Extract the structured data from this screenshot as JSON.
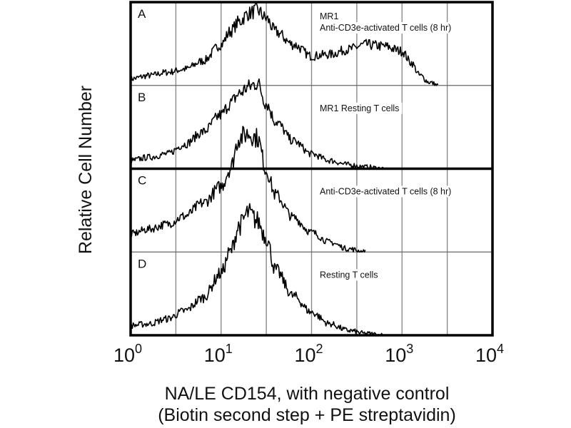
{
  "chart_data": {
    "type": "line",
    "subtype": "stacked-offset flow cytometry histograms",
    "title": "",
    "xlabel_lines": [
      "NA/LE CD154, with negative control",
      "(Biotin second step + PE streptavidin)"
    ],
    "ylabel": "Relative Cell Number",
    "xscale": "log",
    "xlim": [
      1,
      10000
    ],
    "x_ticks": [
      {
        "base": "10",
        "exp": "0"
      },
      {
        "base": "10",
        "exp": "1"
      },
      {
        "base": "10",
        "exp": "2"
      },
      {
        "base": "10",
        "exp": "3"
      },
      {
        "base": "10",
        "exp": "4"
      }
    ],
    "grid": {
      "vertical_every_log10": 0.5,
      "on": true
    },
    "ylim_per_panel": [
      0,
      1
    ],
    "panels": [
      {
        "letter": "A",
        "annotation": [
          "MR1",
          "Anti-CD3e-activated T cells (8 hr)"
        ],
        "log10_x": [
          0.0,
          0.2,
          0.4,
          0.6,
          0.8,
          1.0,
          1.1,
          1.2,
          1.3,
          1.4,
          1.5,
          1.6,
          1.8,
          2.0,
          2.2,
          2.4,
          2.6,
          2.8,
          3.0,
          3.1,
          3.2,
          3.3,
          3.4
        ],
        "height": [
          0.08,
          0.12,
          0.16,
          0.2,
          0.3,
          0.5,
          0.66,
          0.78,
          0.88,
          0.92,
          0.82,
          0.66,
          0.5,
          0.36,
          0.38,
          0.44,
          0.5,
          0.48,
          0.42,
          0.28,
          0.12,
          0.04,
          0.0
        ]
      },
      {
        "letter": "B",
        "annotation": [
          "MR1 Resting T cells"
        ],
        "log10_x": [
          0.0,
          0.2,
          0.4,
          0.6,
          0.8,
          1.0,
          1.1,
          1.2,
          1.3,
          1.4,
          1.5,
          1.6,
          1.8,
          2.0,
          2.2,
          2.4,
          2.6,
          2.8
        ],
        "height": [
          0.1,
          0.14,
          0.18,
          0.3,
          0.45,
          0.66,
          0.8,
          0.92,
          1.0,
          1.05,
          0.8,
          0.58,
          0.34,
          0.18,
          0.1,
          0.05,
          0.02,
          0.0
        ]
      },
      {
        "letter": "C",
        "annotation": [
          "Anti-CD3e-activated T cells (8 hr)"
        ],
        "log10_x": [
          0.0,
          0.2,
          0.4,
          0.6,
          0.8,
          1.0,
          1.1,
          1.2,
          1.3,
          1.4,
          1.5,
          1.6,
          1.8,
          2.0,
          2.2,
          2.4,
          2.6
        ],
        "height": [
          0.22,
          0.28,
          0.34,
          0.44,
          0.6,
          0.8,
          1.02,
          1.4,
          1.45,
          1.4,
          1.0,
          0.7,
          0.42,
          0.24,
          0.12,
          0.04,
          0.0
        ]
      },
      {
        "letter": "D",
        "annotation": [
          "Resting T cells"
        ],
        "log10_x": [
          0.0,
          0.2,
          0.4,
          0.6,
          0.8,
          1.0,
          1.1,
          1.2,
          1.3,
          1.4,
          1.5,
          1.6,
          1.8,
          2.0,
          2.2,
          2.4,
          2.6,
          2.8
        ],
        "height": [
          0.12,
          0.14,
          0.2,
          0.3,
          0.46,
          0.76,
          1.02,
          1.34,
          1.5,
          1.4,
          1.2,
          0.8,
          0.48,
          0.28,
          0.14,
          0.06,
          0.02,
          0.0
        ]
      }
    ]
  }
}
